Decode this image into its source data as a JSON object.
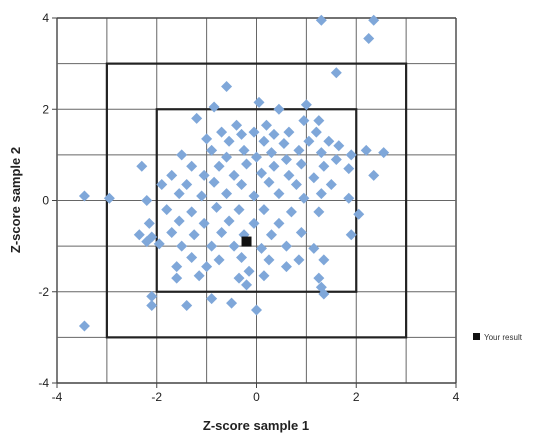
{
  "chart_data": {
    "type": "scatter",
    "title": "",
    "xlabel": "Z-score sample 1",
    "ylabel": "Z-score sample 2",
    "xlim": [
      -4,
      4
    ],
    "ylim": [
      -4,
      4
    ],
    "x_ticks": [
      "-4",
      "-2",
      "0",
      "2",
      "4"
    ],
    "y_ticks": [
      "4",
      "2",
      "0",
      "-2",
      "-4"
    ],
    "grid": true,
    "grid_step": 1,
    "reference_boxes": [
      {
        "half_width": 2
      },
      {
        "half_width": 3
      }
    ],
    "legend": {
      "placement": "right",
      "entries": [
        "Your result"
      ]
    },
    "colors": {
      "points": "#7fa7d9",
      "result": "#111111",
      "grid": "#666666",
      "box": "#222222"
    },
    "series": [
      {
        "values": [
          [
            1.3,
            3.95
          ],
          [
            2.35,
            3.95
          ],
          [
            2.25,
            3.55
          ],
          [
            1.6,
            2.8
          ],
          [
            -0.6,
            2.5
          ],
          [
            -0.85,
            2.05
          ],
          [
            0.05,
            2.15
          ],
          [
            0.45,
            2.0
          ],
          [
            1.0,
            2.1
          ],
          [
            -1.2,
            1.8
          ],
          [
            0.95,
            1.75
          ],
          [
            1.25,
            1.75
          ],
          [
            -0.4,
            1.65
          ],
          [
            0.2,
            1.65
          ],
          [
            1.2,
            1.5
          ],
          [
            -0.7,
            1.5
          ],
          [
            -0.3,
            1.45
          ],
          [
            -0.05,
            1.5
          ],
          [
            0.35,
            1.45
          ],
          [
            0.65,
            1.5
          ],
          [
            1.45,
            1.3
          ],
          [
            -1.0,
            1.35
          ],
          [
            -0.55,
            1.3
          ],
          [
            0.15,
            1.3
          ],
          [
            0.55,
            1.25
          ],
          [
            1.05,
            1.3
          ],
          [
            1.65,
            1.2
          ],
          [
            -0.9,
            1.1
          ],
          [
            -0.25,
            1.1
          ],
          [
            0.3,
            1.05
          ],
          [
            0.85,
            1.1
          ],
          [
            1.3,
            1.05
          ],
          [
            2.2,
            1.1
          ],
          [
            2.55,
            1.05
          ],
          [
            1.9,
            1.0
          ],
          [
            -1.5,
            1.0
          ],
          [
            -0.6,
            0.95
          ],
          [
            0.0,
            0.95
          ],
          [
            0.6,
            0.9
          ],
          [
            1.6,
            0.9
          ],
          [
            -2.3,
            0.75
          ],
          [
            -1.3,
            0.75
          ],
          [
            -0.75,
            0.75
          ],
          [
            -0.2,
            0.8
          ],
          [
            0.35,
            0.75
          ],
          [
            0.9,
            0.8
          ],
          [
            1.35,
            0.75
          ],
          [
            1.85,
            0.7
          ],
          [
            -1.7,
            0.55
          ],
          [
            -1.05,
            0.55
          ],
          [
            -0.45,
            0.55
          ],
          [
            0.1,
            0.6
          ],
          [
            0.65,
            0.55
          ],
          [
            1.15,
            0.5
          ],
          [
            2.35,
            0.55
          ],
          [
            -1.9,
            0.35
          ],
          [
            -1.4,
            0.35
          ],
          [
            -0.85,
            0.4
          ],
          [
            -0.3,
            0.35
          ],
          [
            0.25,
            0.4
          ],
          [
            0.8,
            0.35
          ],
          [
            1.5,
            0.35
          ],
          [
            -3.45,
            0.1
          ],
          [
            -2.95,
            0.05
          ],
          [
            -2.2,
            0.0
          ],
          [
            -1.55,
            0.15
          ],
          [
            -1.1,
            0.1
          ],
          [
            -0.6,
            0.15
          ],
          [
            -0.05,
            0.1
          ],
          [
            0.45,
            0.15
          ],
          [
            0.95,
            0.05
          ],
          [
            1.3,
            0.15
          ],
          [
            1.85,
            0.05
          ],
          [
            -1.8,
            -0.2
          ],
          [
            -1.3,
            -0.25
          ],
          [
            -0.8,
            -0.15
          ],
          [
            -0.35,
            -0.2
          ],
          [
            0.15,
            -0.2
          ],
          [
            0.7,
            -0.25
          ],
          [
            1.25,
            -0.25
          ],
          [
            2.05,
            -0.3
          ],
          [
            -2.15,
            -0.5
          ],
          [
            -1.55,
            -0.45
          ],
          [
            -1.05,
            -0.5
          ],
          [
            -0.55,
            -0.45
          ],
          [
            -0.05,
            -0.5
          ],
          [
            0.45,
            -0.5
          ],
          [
            -2.35,
            -0.75
          ],
          [
            -2.1,
            -0.8
          ],
          [
            -1.7,
            -0.7
          ],
          [
            -1.25,
            -0.75
          ],
          [
            -0.7,
            -0.7
          ],
          [
            -0.25,
            -0.75
          ],
          [
            0.3,
            -0.75
          ],
          [
            0.9,
            -0.7
          ],
          [
            1.9,
            -0.75
          ],
          [
            -2.2,
            -0.9
          ],
          [
            -1.95,
            -0.95
          ],
          [
            -1.5,
            -1.0
          ],
          [
            -0.9,
            -1.0
          ],
          [
            -0.45,
            -1.0
          ],
          [
            0.1,
            -1.05
          ],
          [
            0.6,
            -1.0
          ],
          [
            1.15,
            -1.05
          ],
          [
            -1.3,
            -1.25
          ],
          [
            -0.75,
            -1.3
          ],
          [
            -0.3,
            -1.25
          ],
          [
            0.25,
            -1.3
          ],
          [
            0.85,
            -1.3
          ],
          [
            1.35,
            -1.3
          ],
          [
            -1.6,
            -1.45
          ],
          [
            -1.0,
            -1.45
          ],
          [
            -0.15,
            -1.55
          ],
          [
            0.6,
            -1.45
          ],
          [
            -1.6,
            -1.7
          ],
          [
            -1.15,
            -1.65
          ],
          [
            -0.35,
            -1.7
          ],
          [
            0.15,
            -1.65
          ],
          [
            1.25,
            -1.7
          ],
          [
            -0.2,
            -1.85
          ],
          [
            1.3,
            -1.9
          ],
          [
            -2.1,
            -2.1
          ],
          [
            -0.9,
            -2.15
          ],
          [
            1.35,
            -2.05
          ],
          [
            -2.1,
            -2.3
          ],
          [
            -1.4,
            -2.3
          ],
          [
            -0.5,
            -2.25
          ],
          [
            0.0,
            -2.4
          ],
          [
            -3.45,
            -2.75
          ]
        ]
      }
    ],
    "your_result": [
      -0.2,
      -0.9
    ]
  }
}
